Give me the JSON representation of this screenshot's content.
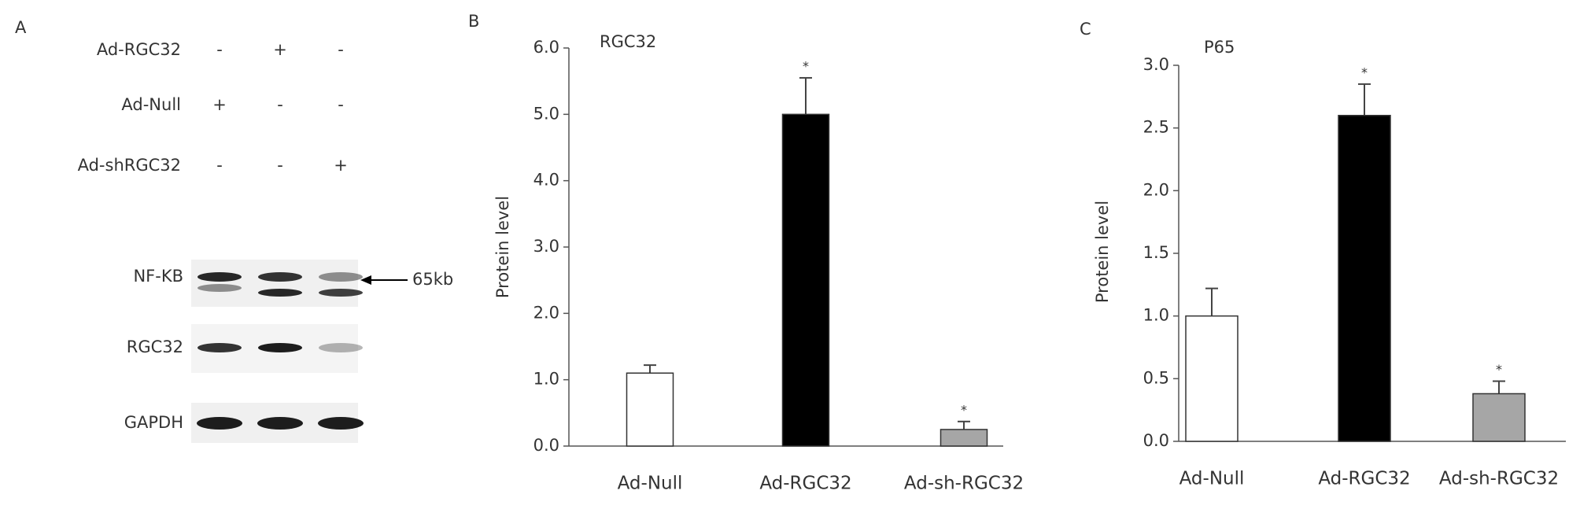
{
  "blot": {
    "panel": "A",
    "treatments": [
      {
        "name": "Ad-RGC32",
        "signs": [
          "-",
          "+",
          "-"
        ]
      },
      {
        "name": "Ad-Null",
        "signs": [
          "+",
          "-",
          "-"
        ]
      },
      {
        "name": "Ad-shRGC32",
        "signs": [
          "-",
          "-",
          "+"
        ]
      }
    ],
    "proteins": [
      "NF-KB",
      "RGC32",
      "GAPDH"
    ],
    "arrow_label": "65kb"
  },
  "chart_data": [
    {
      "type": "bar",
      "panel": "B",
      "title": "RGC32",
      "ylabel": "Protein level",
      "categories": [
        "Ad-Null",
        "Ad-RGC32",
        "Ad-sh-RGC32"
      ],
      "values": [
        1.1,
        5.0,
        0.25
      ],
      "errors": [
        0.12,
        0.55,
        0.12
      ],
      "colors": [
        "#ffffff",
        "#000000",
        "#a6a6a6"
      ],
      "annotations": [
        {
          "category": "Ad-RGC32",
          "text": "*"
        },
        {
          "category": "Ad-sh-RGC32",
          "text": "*"
        }
      ],
      "ylim": [
        0,
        6
      ],
      "yticks": [
        {
          "value": 0,
          "label": "0.0"
        },
        {
          "value": 1,
          "label": "1.0"
        },
        {
          "value": 2,
          "label": "2.0"
        },
        {
          "value": 3,
          "label": "3.0"
        },
        {
          "value": 4,
          "label": "4.0"
        },
        {
          "value": 5,
          "label": "5.0"
        },
        {
          "value": 6,
          "label": "6.0"
        }
      ]
    },
    {
      "type": "bar",
      "panel": "C",
      "title": "P65",
      "ylabel": "Protein level",
      "categories": [
        "Ad-Null",
        "Ad-RGC32",
        "Ad-sh-RGC32"
      ],
      "values": [
        1.0,
        2.6,
        0.38
      ],
      "errors": [
        0.22,
        0.25,
        0.1
      ],
      "colors": [
        "#ffffff",
        "#000000",
        "#a6a6a6"
      ],
      "annotations": [
        {
          "category": "Ad-RGC32",
          "text": "*"
        },
        {
          "category": "Ad-sh-RGC32",
          "text": "*"
        }
      ],
      "ylim": [
        0,
        3
      ],
      "yticks": [
        {
          "value": 0,
          "label": "0.0"
        },
        {
          "value": 0.5,
          "label": "0.5"
        },
        {
          "value": 1,
          "label": "1.0"
        },
        {
          "value": 1.5,
          "label": "1.5"
        },
        {
          "value": 2,
          "label": "2.0"
        },
        {
          "value": 2.5,
          "label": "2.5"
        },
        {
          "value": 3,
          "label": "3.0"
        }
      ]
    }
  ]
}
